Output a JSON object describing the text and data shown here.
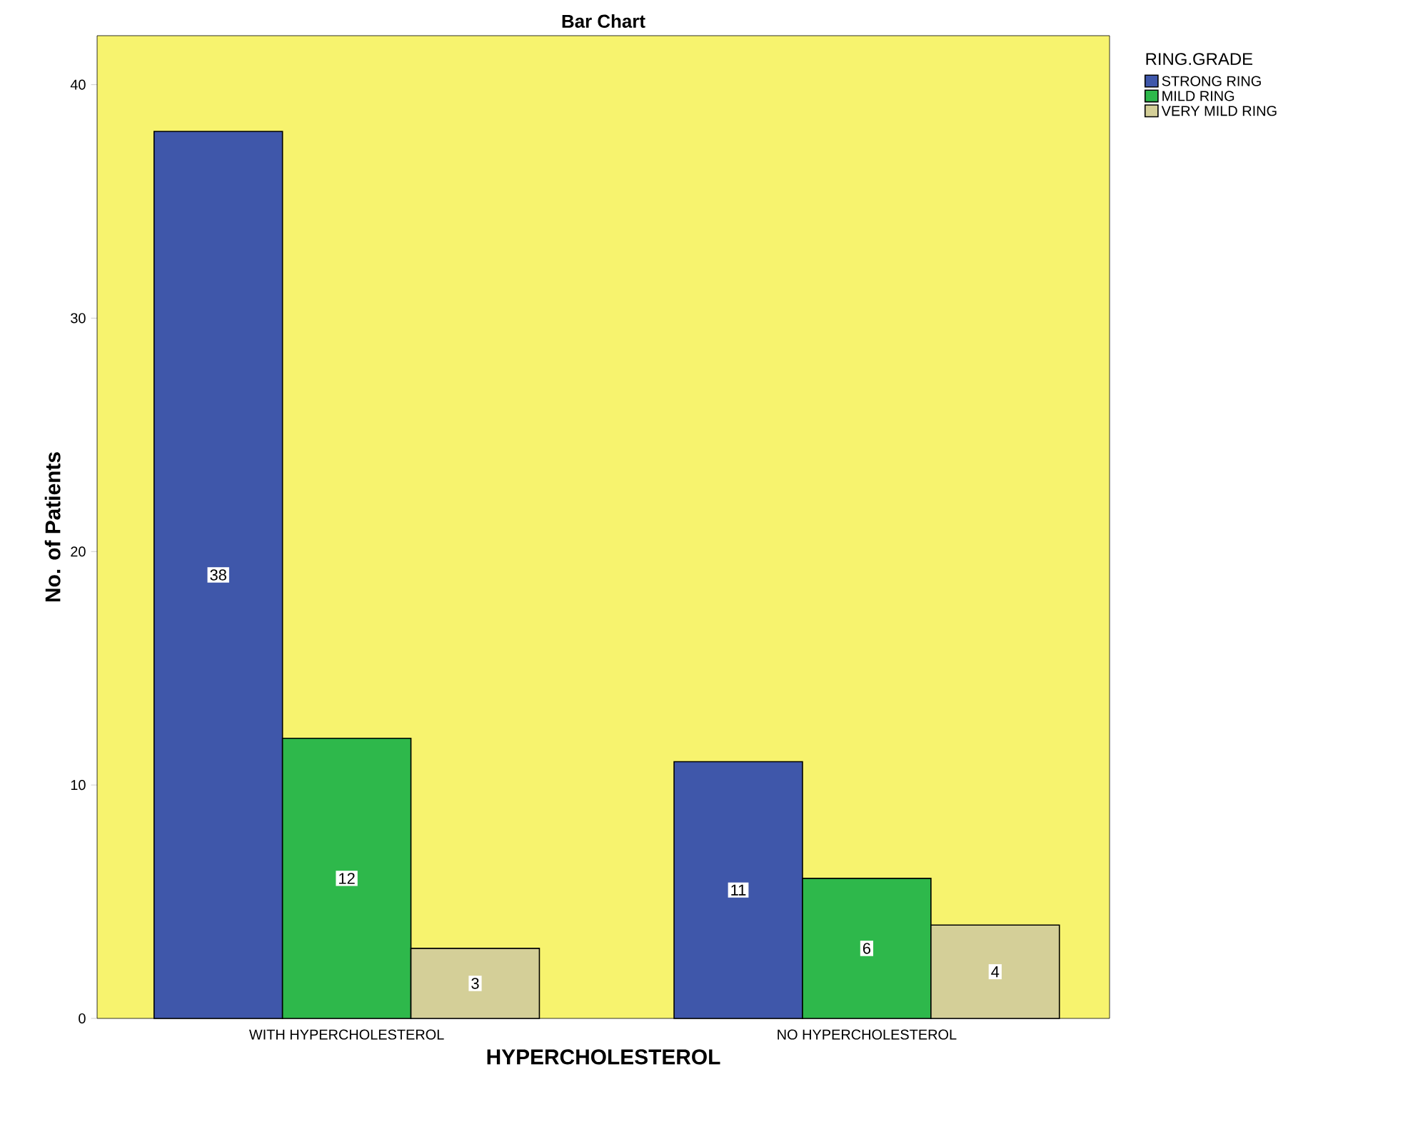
{
  "chart_data": {
    "type": "bar",
    "title": "Bar Chart",
    "xlabel": "HYPERCHOLESTEROL",
    "ylabel": "No. of Patients",
    "legend_title": "RING.GRADE",
    "categories": [
      "WITH HYPERCHOLESTEROL",
      "NO HYPERCHOLESTEROL"
    ],
    "series": [
      {
        "name": "STRONG RING",
        "color": "#3f57aa",
        "values": [
          38,
          11
        ]
      },
      {
        "name": "MILD RING",
        "color": "#2eb84b",
        "values": [
          12,
          6
        ]
      },
      {
        "name": "VERY MILD RING",
        "color": "#d4cf98",
        "values": [
          3,
          4
        ]
      }
    ],
    "ylim": [
      0,
      42.1
    ],
    "yticks": [
      0,
      10,
      20,
      30,
      40
    ],
    "data_labels": true,
    "legend": "top right",
    "grid": false
  }
}
